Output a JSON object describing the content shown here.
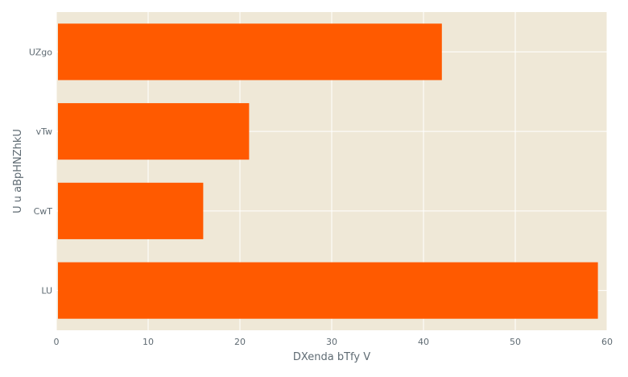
{
  "chart_data": {
    "type": "bar",
    "orientation": "horizontal",
    "categories": [
      "UZgo",
      "vTw",
      "CwT",
      "LU"
    ],
    "values": [
      42,
      21,
      16,
      59
    ],
    "xlabel": "DXenda bTfy V",
    "ylabel": "U u aBpHNZhkU",
    "xlim": [
      0,
      60
    ],
    "xticks": [
      0,
      10,
      20,
      30,
      40,
      50,
      60
    ],
    "grid": true,
    "legend": "none",
    "colors": {
      "bar": "#ff5a00",
      "plot_background": "#efe8d7",
      "grid": "#ffffff",
      "text": "#5f6b73"
    }
  }
}
